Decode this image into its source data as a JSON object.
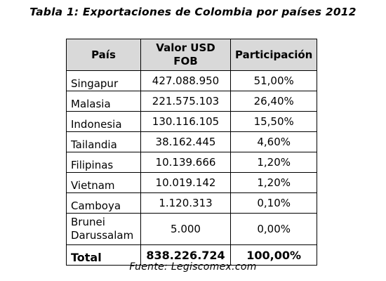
{
  "title": "Tabla 1: Exportaciones de Colombia por países 2012",
  "table": {
    "headers": {
      "country": "País",
      "value_line1": "Valor USD",
      "value_line2": "FOB",
      "share": "Participación"
    },
    "rows": [
      {
        "country": "Singapur",
        "value": "427.088.950",
        "share": "51,00%"
      },
      {
        "country": "Malasia",
        "value": "221.575.103",
        "share": "26,40%"
      },
      {
        "country": "Indonesia",
        "value": "130.116.105",
        "share": "15,50%"
      },
      {
        "country": "Tailandia",
        "value": "38.162.445",
        "share": "4,60%"
      },
      {
        "country": "Filipinas",
        "value": "10.139.666",
        "share": "1,20%"
      },
      {
        "country": "Vietnam",
        "value": "10.019.142",
        "share": "1,20%"
      },
      {
        "country": "Camboya",
        "value": "1.120.313",
        "share": "0,10%"
      },
      {
        "country_line1": "Brunei",
        "country_line2": "Darussalam",
        "value": "5.000",
        "share": "0,00%"
      }
    ],
    "total": {
      "label": "Total",
      "value": "838.226.724",
      "share": "100,00%"
    }
  },
  "source": "Fuente: Legiscomex.com"
}
